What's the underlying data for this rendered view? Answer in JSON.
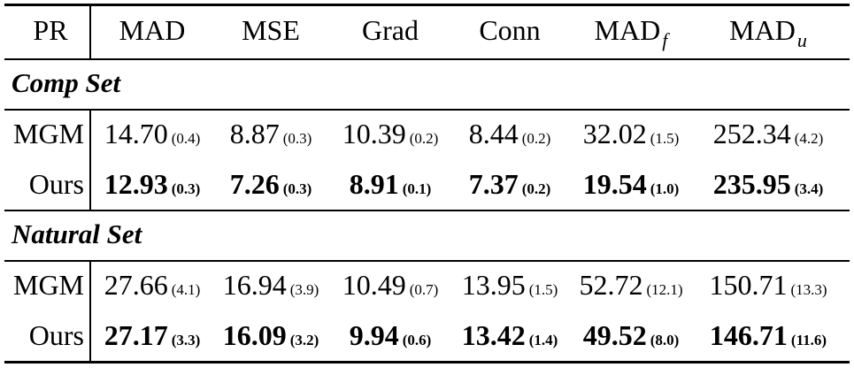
{
  "header": {
    "pr": "PR",
    "cols": [
      "MAD",
      "MSE",
      "Grad",
      "Conn",
      "MAD",
      "MAD"
    ],
    "subscripts": [
      "",
      "",
      "",
      "",
      "f",
      "u"
    ]
  },
  "sections": [
    {
      "title": "Comp Set",
      "rows": [
        {
          "label": "MGM",
          "bold": false,
          "values": [
            [
              "14.70",
              "(0.4)"
            ],
            [
              "8.87",
              "(0.3)"
            ],
            [
              "10.39",
              "(0.2)"
            ],
            [
              "8.44",
              "(0.2)"
            ],
            [
              "32.02",
              "(1.5)"
            ],
            [
              "252.34",
              "(4.2)"
            ]
          ]
        },
        {
          "label": "Ours",
          "bold": true,
          "values": [
            [
              "12.93",
              "(0.3)"
            ],
            [
              "7.26",
              "(0.3)"
            ],
            [
              "8.91",
              "(0.1)"
            ],
            [
              "7.37",
              "(0.2)"
            ],
            [
              "19.54",
              "(1.0)"
            ],
            [
              "235.95",
              "(3.4)"
            ]
          ]
        }
      ]
    },
    {
      "title": "Natural Set",
      "rows": [
        {
          "label": "MGM",
          "bold": false,
          "values": [
            [
              "27.66",
              "(4.1)"
            ],
            [
              "16.94",
              "(3.9)"
            ],
            [
              "10.49",
              "(0.7)"
            ],
            [
              "13.95",
              "(1.5)"
            ],
            [
              "52.72",
              "(12.1)"
            ],
            [
              "150.71",
              "(13.3)"
            ]
          ]
        },
        {
          "label": "Ours",
          "bold": true,
          "values": [
            [
              "27.17",
              "(3.3)"
            ],
            [
              "16.09",
              "(3.2)"
            ],
            [
              "9.94",
              "(0.6)"
            ],
            [
              "13.42",
              "(1.4)"
            ],
            [
              "49.52",
              "(8.0)"
            ],
            [
              "146.71",
              "(11.6)"
            ]
          ]
        }
      ]
    }
  ]
}
